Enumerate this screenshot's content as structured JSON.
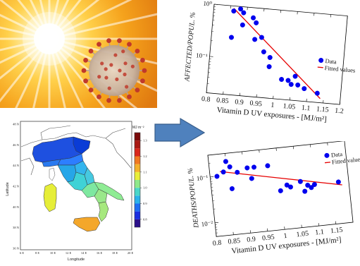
{
  "colors": {
    "marker": "#0000ee",
    "fit_line": "#e60000",
    "arrow_fill": "#4f81bd",
    "arrow_stroke": "#385d8a"
  },
  "photo": {
    "icons": [
      "sun-glow-icon",
      "coronavirus-icon"
    ]
  },
  "map": {
    "colorbar_unit": "MJ m⁻²",
    "colorbar_ticks": [
      "0.8",
      "0.9",
      "1.0",
      "1.1",
      "1.2",
      "1.3"
    ],
    "colorbar_range": [
      0.75,
      1.35
    ],
    "y_ticks": [
      "36 N",
      "38 N",
      "40 N",
      "42 N",
      "44 N",
      "46 N",
      "48 N"
    ],
    "x_ticks": [
      "6 E",
      "8 E",
      "10 E",
      "12 E",
      "14 E",
      "16 E",
      "18 E",
      "20 E"
    ],
    "ylabel": "Latitude",
    "xlabel": "Longitude"
  },
  "arrow": {
    "icon": "right-arrow-icon"
  },
  "chart_data": [
    {
      "type": "scatter",
      "xlabel": "Vitamin D UV exposures - [MJ/m²]",
      "ylabel": "AFFECTED/POPUL. %",
      "xlim": [
        0.8,
        1.2
      ],
      "ylim": [
        0.02,
        1.0
      ],
      "yscale": "log",
      "x_ticks": [
        "0.8",
        "0.85",
        "0.9",
        "0.95",
        "1",
        "1.05",
        "1.1",
        "1.15",
        "1.2"
      ],
      "y_ticks": [
        "10⁰",
        "10⁻¹"
      ],
      "legend_position": "top-right",
      "series": [
        {
          "name": "Data",
          "x": [
            0.86,
            0.86,
            0.88,
            0.89,
            0.89,
            0.92,
            0.93,
            0.93,
            0.95,
            0.96,
            0.98,
            0.98,
            1.02,
            1.04,
            1.05,
            1.06,
            1.07,
            1.09,
            1.13
          ],
          "y": [
            0.8,
            0.25,
            0.9,
            0.45,
            0.77,
            0.64,
            0.52,
            0.25,
            0.28,
            0.15,
            0.12,
            0.08,
            0.048,
            0.047,
            0.04,
            0.058,
            0.04,
            0.035,
            0.03
          ]
        },
        {
          "name": "Fitted values",
          "x": [
            0.86,
            1.14
          ],
          "y": [
            0.9,
            0.024
          ]
        }
      ]
    },
    {
      "type": "scatter",
      "xlabel": "Vitamin D UV exposures - [MJ/m²]",
      "ylabel": "DEATHS/POPUL. %",
      "xlim": [
        0.8,
        1.2
      ],
      "ylim": [
        0.005,
        0.3
      ],
      "yscale": "log",
      "x_ticks": [
        "0.8",
        "0.85",
        "0.9",
        "0.95",
        "1",
        "1.05",
        "1.1",
        "1.15"
      ],
      "y_ticks": [
        "10⁻¹",
        "10⁻²"
      ],
      "legend_position": "top-left",
      "series": [
        {
          "name": "Data",
          "x": [
            0.82,
            0.84,
            0.85,
            0.86,
            0.86,
            0.88,
            0.91,
            0.92,
            0.93,
            0.97,
            1.0,
            1.02,
            1.03,
            1.06,
            1.07,
            1.08,
            1.09,
            1.1,
            1.17
          ],
          "y": [
            0.1,
            0.12,
            0.2,
            0.05,
            0.15,
            0.11,
            0.13,
            0.075,
            0.13,
            0.13,
            0.035,
            0.045,
            0.04,
            0.05,
            0.03,
            0.04,
            0.035,
            0.04,
            0.04
          ]
        },
        {
          "name": "Fitted values",
          "x": [
            0.83,
            1.18
          ],
          "y": [
            0.125,
            0.034
          ]
        }
      ]
    }
  ]
}
